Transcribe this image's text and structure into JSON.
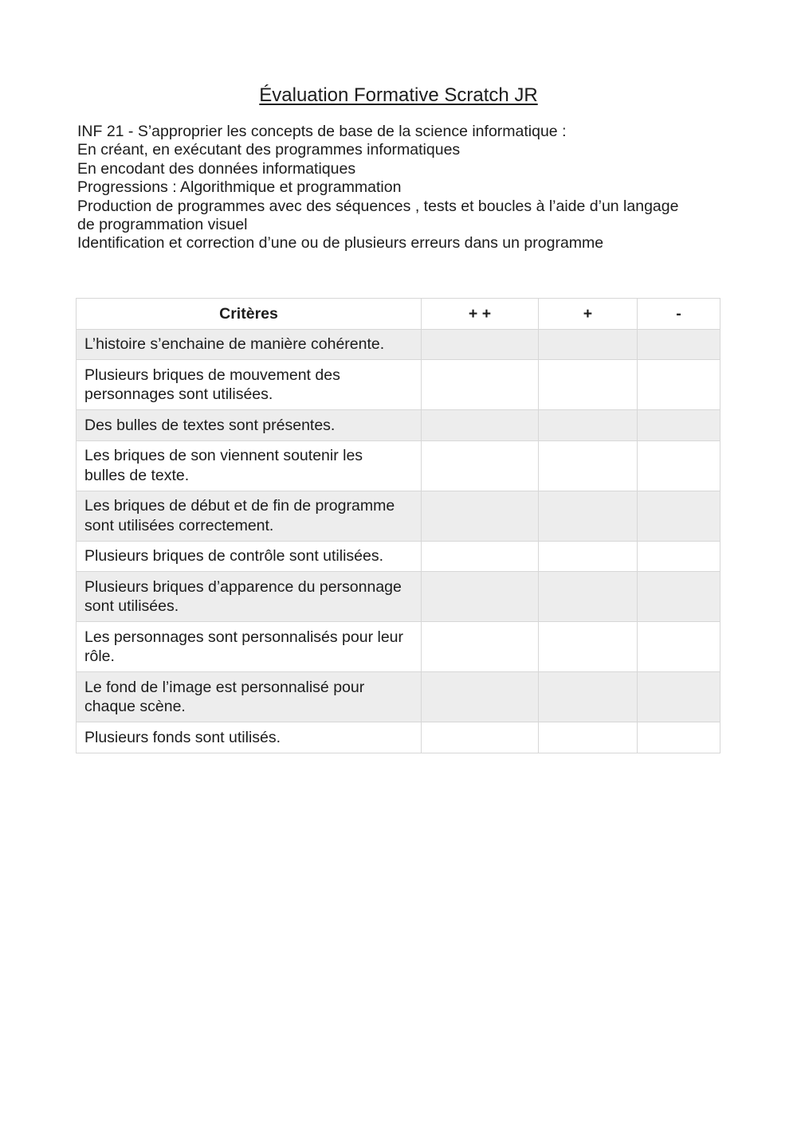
{
  "document": {
    "title": "Évaluation Formative Scratch JR",
    "intro_lines": [
      "INF 21 - S’approprier les concepts de base de la science informatique :",
      "En créant, en exécutant des programmes informatiques",
      "En encodant des données informatiques",
      "Progressions : Algorithmique et programmation",
      "Production de programmes avec des séquences , tests et boucles à l’aide d’un langage",
      "de programmation visuel",
      "Identification et correction d’une ou de plusieurs erreurs dans un programme"
    ],
    "table": {
      "headers": [
        "Critères",
        "+ +",
        "+",
        "-"
      ],
      "rows": [
        "L’histoire s’enchaine de manière cohérente.",
        "Plusieurs briques de mouvement des personnages sont utilisées.",
        "Des bulles de textes sont présentes.",
        "Les briques de son viennent soutenir les bulles de texte.",
        "Les briques de début et de fin de programme sont utilisées correctement.",
        "Plusieurs briques de contrôle sont utilisées.",
        "Plusieurs briques d’apparence du personnage sont utilisées.",
        "Les personnages sont personnalisés pour leur rôle.",
        "Le fond de l’image est personnalisé pour chaque scène.",
        "Plusieurs fonds sont utilisés."
      ]
    }
  },
  "colors": {
    "page_bg": "#ffffff",
    "text": "#1c1c1c",
    "table_border": "#d7d7d7",
    "row_alt_bg": "#ededed"
  }
}
